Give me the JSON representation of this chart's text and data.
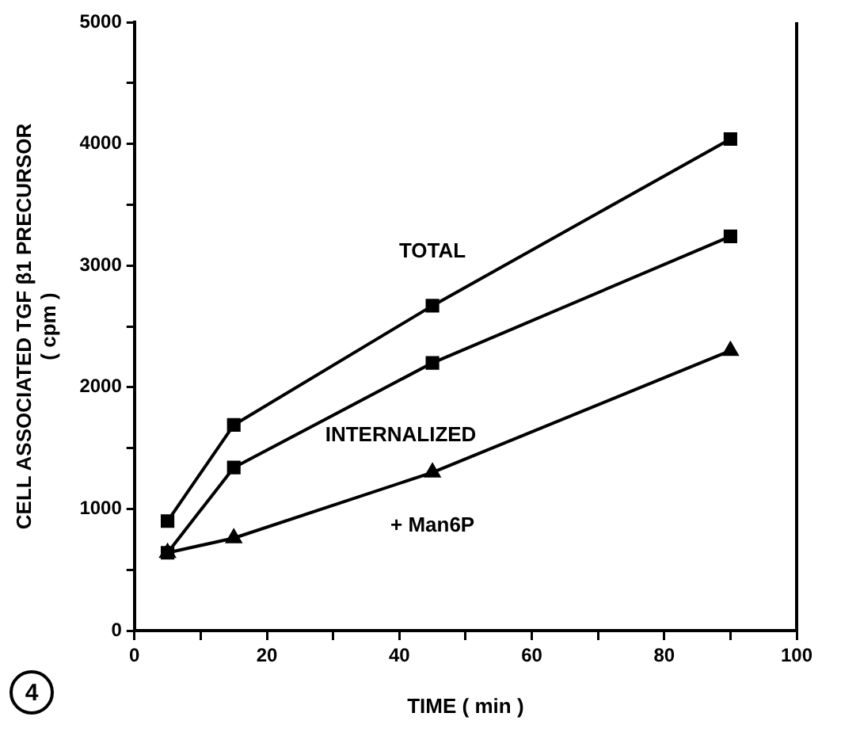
{
  "chart_data": {
    "type": "line",
    "xlabel": "TIME ( min )",
    "ylabel": "CELL ASSOCIATED TGF β1 PRECURSOR\n( cpm )",
    "x": [
      5,
      15,
      45,
      90
    ],
    "series": [
      {
        "name": "TOTAL",
        "color": "#000000",
        "marker": "square",
        "values": [
          900,
          1690,
          2670,
          4040
        ]
      },
      {
        "name": "INTERNALIZED",
        "color": "#000000",
        "marker": "square",
        "values": [
          640,
          1340,
          2200,
          3240
        ]
      },
      {
        "name": "+ Man6P",
        "color": "#000000",
        "marker": "triangle",
        "values": [
          640,
          760,
          1300,
          2300
        ]
      }
    ],
    "xlim": [
      0,
      100
    ],
    "xticks": [
      0,
      {
        "value": 10,
        "label": null
      },
      20,
      {
        "value": 30,
        "label": null
      },
      40,
      {
        "value": 50,
        "label": null
      },
      60,
      {
        "value": 70,
        "label": null
      },
      80,
      {
        "value": 90,
        "label": null
      },
      100
    ],
    "ylim": [
      0,
      5000
    ],
    "yticks": [
      0,
      {
        "value": 500,
        "label": null
      },
      1000,
      {
        "value": 1500,
        "label": null
      },
      2000,
      {
        "value": 2500,
        "label": null
      },
      3000,
      {
        "value": 3500,
        "label": null
      },
      4000,
      {
        "value": 4500,
        "label": null
      },
      5000
    ],
    "grid": false,
    "legend": false,
    "line_style": "solid",
    "annotations": [
      "4"
    ]
  }
}
